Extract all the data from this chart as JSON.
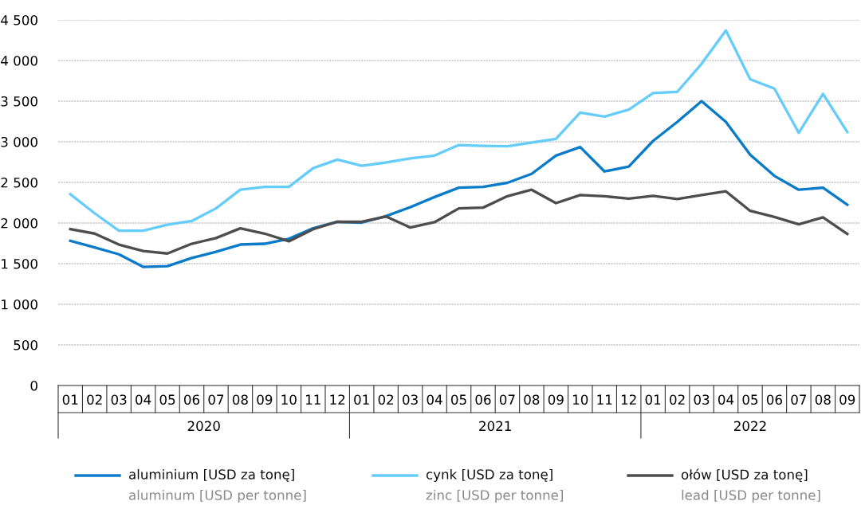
{
  "chart_data": {
    "type": "line",
    "categories": [
      "01",
      "02",
      "03",
      "04",
      "05",
      "06",
      "07",
      "08",
      "09",
      "10",
      "11",
      "12",
      "01",
      "02",
      "03",
      "04",
      "05",
      "06",
      "07",
      "08",
      "09",
      "10",
      "11",
      "12",
      "01",
      "02",
      "03",
      "04",
      "05",
      "06",
      "07",
      "08",
      "09"
    ],
    "annotations": [
      "2020",
      "2021",
      "2022"
    ],
    "series": [
      {
        "name": "aluminium [USD za tonę]\naluminum [USD per tonne]",
        "color": "#0a7bc9",
        "values": [
          1780,
          1700,
          1615,
          1460,
          1470,
          1570,
          1645,
          1735,
          1745,
          1805,
          1935,
          2015,
          2005,
          2085,
          2195,
          2320,
          2435,
          2445,
          2495,
          2605,
          2830,
          2935,
          2635,
          2695,
          3010,
          3245,
          3500,
          3245,
          2840,
          2580,
          2410,
          2435,
          2225
        ]
      },
      {
        "name": "cynk [USD za tonę]\nzinc [USD per tonne]",
        "color": "#66ccfa",
        "values": [
          2355,
          2120,
          1905,
          1905,
          1980,
          2025,
          2180,
          2410,
          2445,
          2445,
          2675,
          2780,
          2705,
          2745,
          2795,
          2830,
          2960,
          2950,
          2945,
          2990,
          3035,
          3360,
          3310,
          3395,
          3600,
          3615,
          3960,
          4370,
          3770,
          3655,
          3110,
          3590,
          3120
        ]
      },
      {
        "name": "ołów [USD za tonę]\nlead [USD per tonne]",
        "color": "#4d4d4d",
        "values": [
          1925,
          1870,
          1735,
          1655,
          1625,
          1745,
          1815,
          1935,
          1870,
          1775,
          1925,
          2015,
          2015,
          2080,
          1945,
          2010,
          2180,
          2190,
          2330,
          2410,
          2245,
          2345,
          2330,
          2300,
          2335,
          2295,
          2345,
          2390,
          2150,
          2075,
          1985,
          2070,
          1865
        ]
      }
    ],
    "ylim": [
      0,
      4500
    ],
    "yticks": [
      0,
      500,
      {
        "value": 1000,
        "label": "1 000"
      },
      {
        "value": 1500,
        "label": "1 500"
      },
      {
        "value": 2000,
        "label": "2 000"
      },
      {
        "value": 2500,
        "label": "2 500"
      },
      {
        "value": 3000,
        "label": "3 000"
      },
      {
        "value": 3500,
        "label": "3 500"
      },
      {
        "value": 4000,
        "label": "4 000"
      },
      {
        "value": 4500,
        "label": "4 500"
      }
    ],
    "grid": "y",
    "legend": "bottom",
    "line_style": "solid",
    "marker": "none"
  }
}
